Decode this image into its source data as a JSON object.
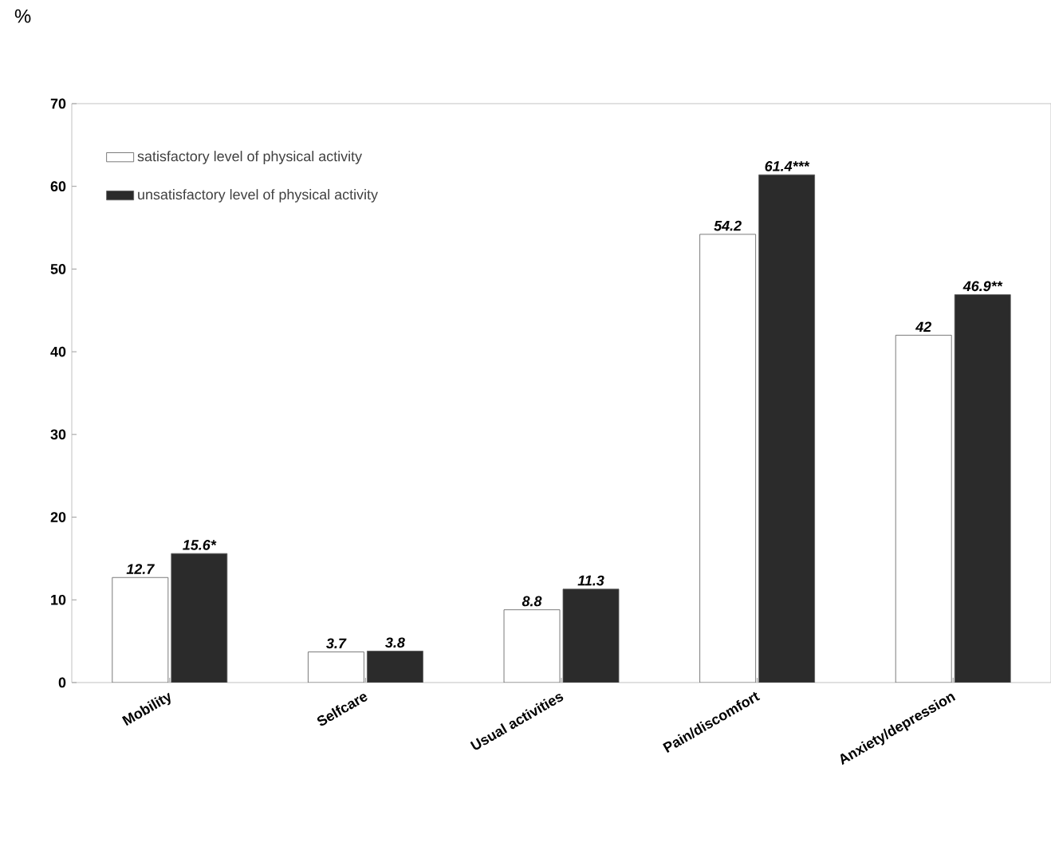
{
  "chart_data": {
    "type": "bar",
    "ylabel": "%",
    "categories": [
      "Mobility",
      "Selfcare",
      "Usual activities",
      "Pain/discomfort",
      "Anxiety/depression"
    ],
    "series": [
      {
        "name": "satisfactory level of physical activity",
        "color": "#ffffff",
        "values": [
          12.7,
          3.7,
          8.8,
          54.2,
          42
        ],
        "value_labels": [
          "12.7",
          "3.7",
          "8.8",
          "54.2",
          "42"
        ]
      },
      {
        "name": "unsatisfactory level of physical activity",
        "color": "#2b2b2b",
        "values": [
          15.6,
          3.8,
          11.3,
          61.4,
          46.9
        ],
        "value_labels": [
          "15.6*",
          "3.8",
          "11.3",
          "61.4***",
          "46.9**"
        ]
      }
    ],
    "ylim": [
      0,
      70
    ],
    "yticks": [
      0,
      10,
      20,
      30,
      40,
      50,
      60,
      70
    ],
    "legend": "top left",
    "grid": false
  }
}
